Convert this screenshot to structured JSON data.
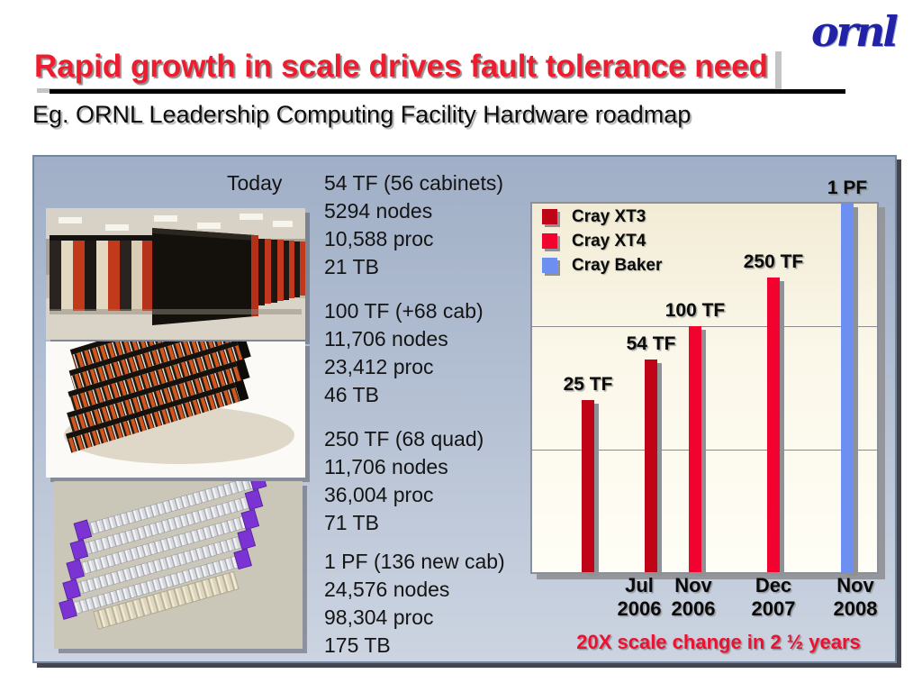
{
  "slide": {
    "logo_text": "ornl",
    "title": "Rapid growth in scale drives fault tolerance need",
    "subtitle": "Eg. ORNL Leadership Computing Facility Hardware roadmap",
    "today_label": "Today"
  },
  "colors": {
    "title_red": "#ee1c2e",
    "footnote_red": "#ee1031",
    "logo_blue": "#2222a8",
    "panel_gradient_top": "#a0afc7",
    "panel_gradient_bottom": "#ccd4e1",
    "plot_background": "#f6f0de",
    "xt3_red": "#c00418",
    "xt4_red": "#f2032f",
    "baker_blue": "#6e8ff2"
  },
  "images": [
    {
      "name": "cray-xt3-machine-room-photo",
      "alt": "Photo of Cray XT3 cabinets in machine room"
    },
    {
      "name": "cray-xt4-render",
      "alt": "Isometric render of Cray XT4 cabinet rows"
    },
    {
      "name": "cray-baker-render",
      "alt": "Isometric render of Cray Baker cabinet layout"
    }
  ],
  "spec_blocks": [
    {
      "lines": [
        "54 TF (56 cabinets)",
        "5294 nodes",
        "10,588 proc",
        "21 TB"
      ]
    },
    {
      "lines": [
        "100 TF (+68 cab)",
        "11,706 nodes",
        "23,412 proc",
        "46 TB"
      ]
    },
    {
      "lines": [
        "250 TF (68 quad)",
        "11,706 nodes",
        "36,004 proc",
        "71 TB"
      ]
    },
    {
      "lines": [
        "1 PF (136 new cab)",
        "24,576 nodes",
        "98,304 proc",
        "175 TB"
      ]
    }
  ],
  "chart_data": {
    "type": "bar",
    "y_scale": "log",
    "y_unit": "TF",
    "ylim": [
      1,
      1000
    ],
    "gridlines": [
      10,
      100
    ],
    "legend_position": "top-left",
    "series_legend": [
      {
        "name": "Cray XT3",
        "color": "#c00418"
      },
      {
        "name": "Cray XT4",
        "color": "#f2032f"
      },
      {
        "name": "Cray Baker",
        "color": "#6e8ff2"
      }
    ],
    "points": [
      {
        "label": "25 TF",
        "value_tf": 25,
        "series": "Cray XT3",
        "date": ""
      },
      {
        "label": "54 TF",
        "value_tf": 54,
        "series": "Cray XT3",
        "date": "Jul 2006"
      },
      {
        "label": "100 TF",
        "value_tf": 100,
        "series": "Cray XT4",
        "date": "Nov 2006"
      },
      {
        "label": "250 TF",
        "value_tf": 250,
        "series": "Cray XT4",
        "date": "Dec 2007"
      },
      {
        "label": "1 PF",
        "value_tf": 1000,
        "series": "Cray Baker",
        "date": "Nov 2008"
      }
    ],
    "footnote": "20X scale change in 2 ½ years"
  }
}
